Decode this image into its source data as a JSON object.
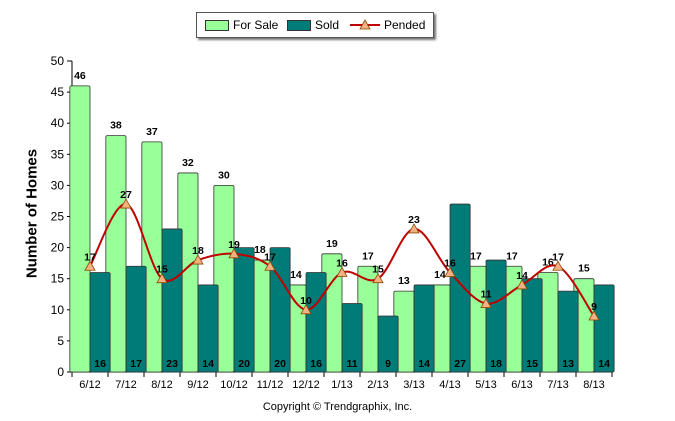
{
  "legend": {
    "for_sale": "For Sale",
    "sold": "Sold",
    "pended": "Pended"
  },
  "copyright": "Copyright © Trendgraphix, Inc.",
  "chart_data": {
    "type": "bar",
    "categories": [
      "6/12",
      "7/12",
      "8/12",
      "9/12",
      "10/12",
      "11/12",
      "12/12",
      "1/13",
      "2/13",
      "3/13",
      "4/13",
      "5/13",
      "6/13",
      "7/13",
      "8/13"
    ],
    "series": [
      {
        "name": "For Sale",
        "type": "bar",
        "values": [
          46,
          38,
          37,
          32,
          30,
          18,
          14,
          19,
          17,
          13,
          14,
          17,
          17,
          16,
          15
        ]
      },
      {
        "name": "Sold",
        "type": "bar",
        "values": [
          16,
          17,
          23,
          14,
          20,
          20,
          16,
          11,
          9,
          14,
          27,
          18,
          15,
          13,
          14
        ]
      },
      {
        "name": "Pended",
        "type": "line",
        "values": [
          17,
          27,
          15,
          18,
          19,
          17,
          10,
          16,
          15,
          23,
          16,
          11,
          14,
          17,
          9
        ]
      }
    ],
    "ylabel": "Number of Homes",
    "ylim": [
      0,
      50
    ],
    "yticks": [
      0,
      5,
      10,
      15,
      20,
      25,
      30,
      35,
      40,
      45,
      50
    ],
    "colors": {
      "for_sale": "#99ff99",
      "sold": "#007b78",
      "pended": "#c00000",
      "marker": "#f4b183"
    }
  }
}
